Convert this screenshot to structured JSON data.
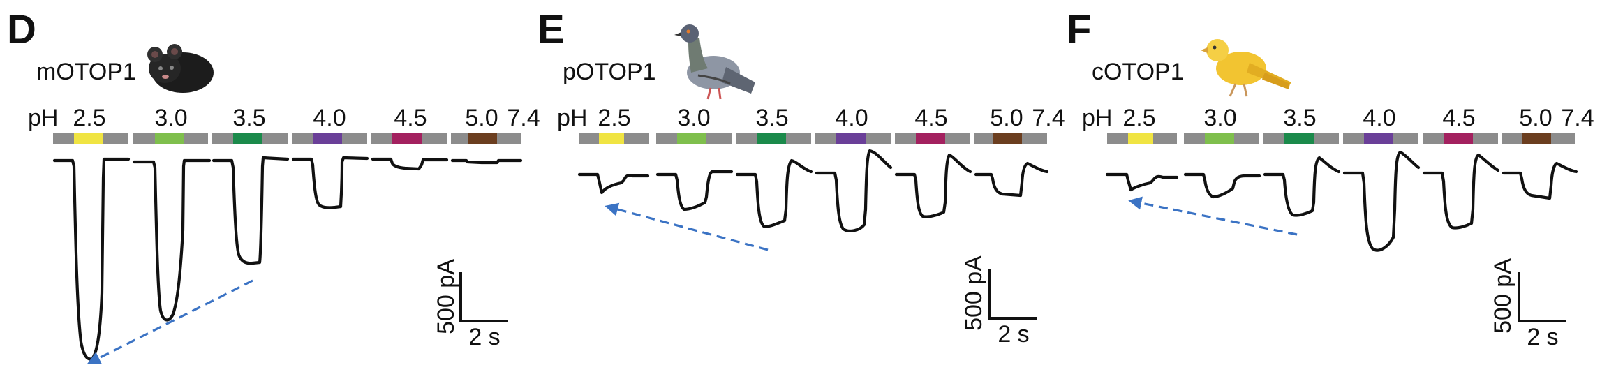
{
  "colors": {
    "buffer_bar": "#8c8c8c",
    "trace": "#111111",
    "arrow": "#3b73c4",
    "ph_2.5": "#f0e442",
    "ph_3.0": "#7fbf4d",
    "ph_3.5": "#1b8a4b",
    "ph_4.0": "#6a3f98",
    "ph_4.5": "#a3215f",
    "ph_5.0": "#6b3e1f"
  },
  "ph_prefix": "pH",
  "panels": [
    {
      "letter": "D",
      "construct": "mOTOP1",
      "animal_icon": "mouse-icon",
      "ph_labels": [
        "2.5",
        "3.0",
        "3.5",
        "4.0",
        "4.5",
        "5.0",
        "7.4"
      ],
      "scale_current": "500 pA",
      "scale_time": "2 s"
    },
    {
      "letter": "E",
      "construct": "pOTOP1",
      "animal_icon": "pigeon-icon",
      "ph_labels": [
        "2.5",
        "3.0",
        "3.5",
        "4.0",
        "4.5",
        "5.0",
        "7.4"
      ],
      "scale_current": "500 pA",
      "scale_time": "2 s"
    },
    {
      "letter": "F",
      "construct": "cOTOP1",
      "animal_icon": "canary-icon",
      "ph_labels": [
        "2.5",
        "3.0",
        "3.5",
        "4.0",
        "4.5",
        "5.0",
        "7.4"
      ],
      "scale_current": "500 pA",
      "scale_time": "2 s"
    }
  ]
}
